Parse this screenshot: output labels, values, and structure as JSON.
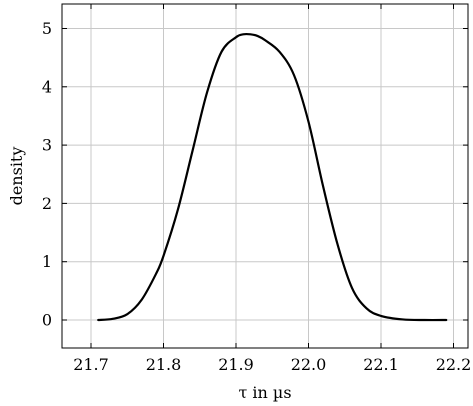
{
  "chart_data": {
    "type": "line",
    "title": "",
    "xlabel": "τ in µs",
    "ylabel": "density",
    "xlim": [
      21.66,
      22.22
    ],
    "ylim": [
      -0.48,
      5.42
    ],
    "grid": true,
    "x_ticks": [
      21.7,
      21.8,
      21.9,
      22.0,
      22.1,
      22.2
    ],
    "x_tick_labels": [
      "21.7",
      "21.8",
      "21.9",
      "22.0",
      "22.1",
      "22.2"
    ],
    "y_ticks": [
      0,
      1,
      2,
      3,
      4,
      5
    ],
    "y_tick_labels": [
      "0",
      "1",
      "2",
      "3",
      "4",
      "5"
    ],
    "series": [
      {
        "x": [
          21.71,
          21.73,
          21.75,
          21.77,
          21.79,
          21.8,
          21.82,
          21.84,
          21.86,
          21.88,
          21.9,
          21.91,
          21.92,
          21.93,
          21.94,
          21.96,
          21.98,
          22.0,
          22.02,
          22.04,
          22.06,
          22.08,
          22.1,
          22.13,
          22.16,
          22.19
        ],
        "values": [
          0.0,
          0.02,
          0.1,
          0.35,
          0.8,
          1.1,
          1.9,
          2.9,
          3.9,
          4.6,
          4.85,
          4.9,
          4.9,
          4.87,
          4.8,
          4.6,
          4.2,
          3.4,
          2.3,
          1.3,
          0.55,
          0.2,
          0.07,
          0.01,
          0.0,
          0.0
        ]
      }
    ]
  }
}
